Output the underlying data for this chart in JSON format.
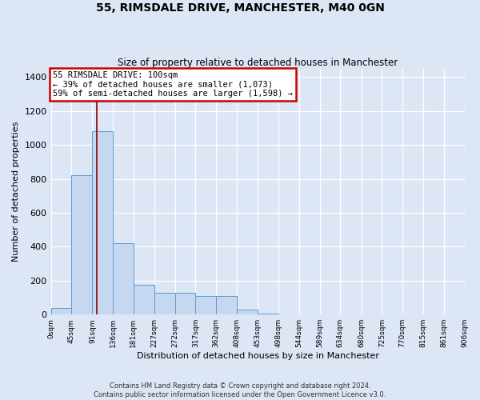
{
  "title_line1": "55, RIMSDALE DRIVE, MANCHESTER, M40 0GN",
  "title_line2": "Size of property relative to detached houses in Manchester",
  "xlabel": "Distribution of detached houses by size in Manchester",
  "ylabel": "Number of detached properties",
  "footer_line1": "Contains HM Land Registry data © Crown copyright and database right 2024.",
  "footer_line2": "Contains public sector information licensed under the Open Government Licence v3.0.",
  "annotation_line1": "55 RIMSDALE DRIVE: 100sqm",
  "annotation_line2": "← 39% of detached houses are smaller (1,073)",
  "annotation_line3": "59% of semi-detached houses are larger (1,598) →",
  "bar_edges": [
    0,
    45,
    91,
    136,
    181,
    227,
    272,
    317,
    362,
    408,
    453,
    498,
    544,
    589,
    634,
    680,
    725,
    770,
    815,
    861,
    906
  ],
  "bar_heights": [
    40,
    820,
    1080,
    420,
    175,
    130,
    130,
    110,
    110,
    30,
    5,
    0,
    0,
    0,
    0,
    0,
    0,
    0,
    0,
    0
  ],
  "bar_color": "#c5d8f0",
  "bar_edge_color": "#5b9bd5",
  "vline_x": 100,
  "vline_color": "#8b0000",
  "annotation_box_facecolor": "#ffffff",
  "annotation_box_edgecolor": "#cc0000",
  "background_color": "#dce6f5",
  "plot_background_color": "#dce6f5",
  "ylim": [
    0,
    1450
  ],
  "yticks": [
    0,
    200,
    400,
    600,
    800,
    1000,
    1200,
    1400
  ],
  "xlim_min": 0,
  "xlim_max": 906,
  "grid_color": "#ffffff",
  "tick_labels": [
    "0sqm",
    "45sqm",
    "91sqm",
    "136sqm",
    "181sqm",
    "227sqm",
    "272sqm",
    "317sqm",
    "362sqm",
    "408sqm",
    "453sqm",
    "498sqm",
    "544sqm",
    "589sqm",
    "634sqm",
    "680sqm",
    "725sqm",
    "770sqm",
    "815sqm",
    "861sqm",
    "906sqm"
  ]
}
